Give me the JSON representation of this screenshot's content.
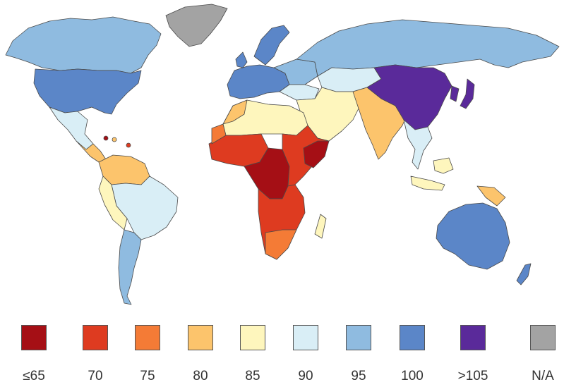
{
  "colors": {
    "le65": "#a50f15",
    "c70": "#de3b20",
    "c75": "#f47b36",
    "c80": "#fcc46c",
    "c85": "#fef6bd",
    "c90": "#d9eef6",
    "c95": "#8fbbe0",
    "c100": "#5b86c8",
    "gt105": "#5a2a9a",
    "na": "#a3a3a3"
  },
  "legend": [
    {
      "label": "≤65",
      "color": "#a50f15"
    },
    {
      "label": "70",
      "color": "#de3b20"
    },
    {
      "label": "75",
      "color": "#f47b36"
    },
    {
      "label": "80",
      "color": "#fcc46c"
    },
    {
      "label": "85",
      "color": "#fef6bd"
    },
    {
      "label": "90",
      "color": "#d9eef6"
    },
    {
      "label": "95",
      "color": "#8fbbe0"
    },
    {
      "label": "100",
      "color": "#5b86c8"
    },
    {
      "label": ">105",
      "color": "#5a2a9a"
    },
    {
      "label": "N/A",
      "color": "#a3a3a3"
    }
  ]
}
